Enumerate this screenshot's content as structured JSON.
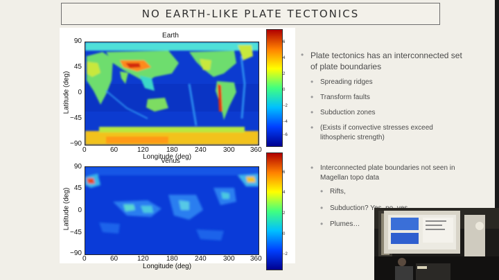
{
  "slide": {
    "title": "NO EARTH-LIKE PLATE TECTONICS",
    "bullets": [
      {
        "level": 1,
        "text": "Plate tectonics has an interconnected set of plate boundaries"
      },
      {
        "level": 2,
        "text": "Spreading ridges"
      },
      {
        "level": 2,
        "text": "Transform faults"
      },
      {
        "level": 2,
        "text": "Subduction zones"
      },
      {
        "level": 2,
        "text": "(Exists if convective stresses exceed lithospheric strength)"
      },
      {
        "level": 1,
        "text": "Interconnected plate boundaries not seen in Magellan topo data"
      },
      {
        "level": 2,
        "text": "Rifts,"
      },
      {
        "level": 2,
        "text": "Subduction? Yes, no, yes"
      },
      {
        "level": 2,
        "text": "Plumes…"
      }
    ]
  },
  "maps": [
    {
      "title": "Earth",
      "xlabel": "Longitude (deg)",
      "ylabel": "Latitude (deg)",
      "xticks": [
        "0",
        "60",
        "120",
        "180",
        "240",
        "300",
        "360"
      ],
      "yticks": [
        "90",
        "45",
        "0",
        "−45",
        "−90"
      ],
      "colorbar_ticks": [
        "6",
        "4",
        "2",
        "0",
        "−2",
        "−4",
        "−6"
      ]
    },
    {
      "title": "Venus",
      "xlabel": "Longitude (deg)",
      "ylabel": "Latitude (deg)",
      "xticks": [
        "0",
        "60",
        "120",
        "180",
        "240",
        "300",
        "360"
      ],
      "yticks": [
        "90",
        "45",
        "0",
        "−45",
        "−90"
      ],
      "colorbar_ticks": [
        "6",
        "4",
        "2",
        "0",
        "−2"
      ]
    }
  ],
  "colors": {
    "colormap": [
      "#00008f",
      "#0040ff",
      "#00c0ff",
      "#40ff80",
      "#ffff00",
      "#ff8000",
      "#b00000"
    ],
    "slide_bg": "#f1efe8"
  },
  "overlay": {
    "type": "webcam-picture-in-picture",
    "content": "presenter at podium beside projected slide"
  }
}
